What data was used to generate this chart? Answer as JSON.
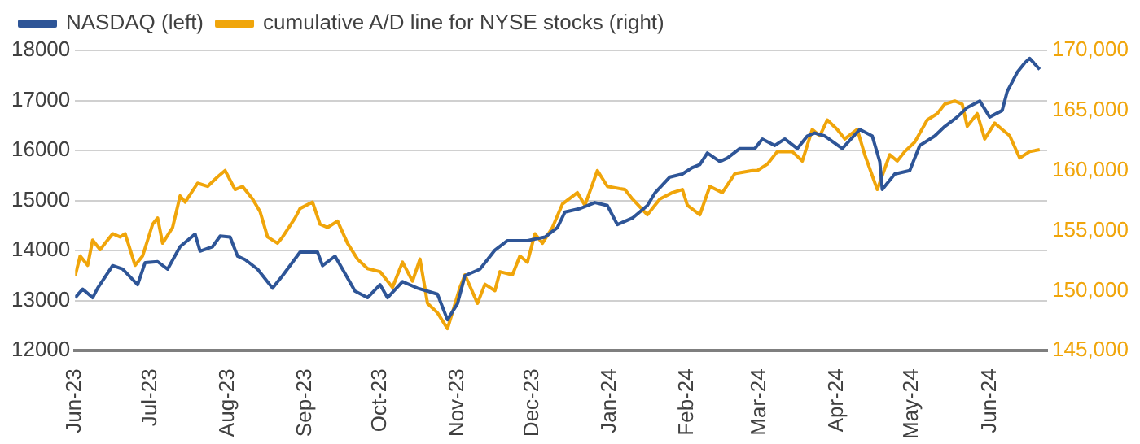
{
  "chart_data": {
    "type": "line",
    "xlim": [
      "2023-06-01",
      "2024-06-24"
    ],
    "xticks": [
      {
        "value": "2023-06-01",
        "label": "Jun-23"
      },
      {
        "value": "2023-07-01",
        "label": "Jul-23"
      },
      {
        "value": "2023-08-01",
        "label": "Aug-23"
      },
      {
        "value": "2023-09-01",
        "label": "Sep-23"
      },
      {
        "value": "2023-10-01",
        "label": "Oct-23"
      },
      {
        "value": "2023-11-01",
        "label": "Nov-23"
      },
      {
        "value": "2023-12-01",
        "label": "Dec-23"
      },
      {
        "value": "2024-01-01",
        "label": "Jan-24"
      },
      {
        "value": "2024-02-01",
        "label": "Feb-24"
      },
      {
        "value": "2024-03-01",
        "label": "Mar-24"
      },
      {
        "value": "2024-04-01",
        "label": "Apr-24"
      },
      {
        "value": "2024-05-01",
        "label": "May-24"
      },
      {
        "value": "2024-06-01",
        "label": "Jun-24"
      }
    ],
    "ylim": [
      12000,
      18000
    ],
    "yticks": [
      12000,
      13000,
      14000,
      15000,
      16000,
      17000,
      18000
    ],
    "y2lim": [
      145000,
      170000
    ],
    "y2ticks": [
      {
        "value": 145000,
        "label": "145,000"
      },
      {
        "value": 150000,
        "label": "150,000"
      },
      {
        "value": 155000,
        "label": "155,000"
      },
      {
        "value": 160000,
        "label": "160,000"
      },
      {
        "value": 165000,
        "label": "165,000"
      },
      {
        "value": 170000,
        "label": "170,000"
      }
    ],
    "grid": "y",
    "legend": "top left",
    "series": [
      {
        "name": "NASDAQ (left)",
        "color": "#2e5597",
        "axis": "y",
        "x": [
          "2023-06-01",
          "2023-06-04",
          "2023-06-08",
          "2023-06-10",
          "2023-06-16",
          "2023-06-20",
          "2023-06-26",
          "2023-06-29",
          "2023-07-04",
          "2023-07-08",
          "2023-07-13",
          "2023-07-19",
          "2023-07-21",
          "2023-07-26",
          "2023-07-29",
          "2023-08-02",
          "2023-08-05",
          "2023-08-08",
          "2023-08-13",
          "2023-08-19",
          "2023-08-23",
          "2023-08-30",
          "2023-09-06",
          "2023-09-08",
          "2023-09-13",
          "2023-09-16",
          "2023-09-21",
          "2023-09-26",
          "2023-10-01",
          "2023-10-04",
          "2023-10-10",
          "2023-10-16",
          "2023-10-24",
          "2023-10-28",
          "2023-11-01",
          "2023-11-04",
          "2023-11-10",
          "2023-11-16",
          "2023-11-21",
          "2023-11-29",
          "2023-12-06",
          "2023-12-11",
          "2023-12-14",
          "2023-12-20",
          "2023-12-26",
          "2023-12-31",
          "2024-01-04",
          "2024-01-10",
          "2024-01-16",
          "2024-01-19",
          "2024-01-25",
          "2024-01-30",
          "2024-02-03",
          "2024-02-06",
          "2024-02-09",
          "2024-02-14",
          "2024-02-17",
          "2024-02-22",
          "2024-02-28",
          "2024-03-02",
          "2024-03-07",
          "2024-03-11",
          "2024-03-16",
          "2024-03-20",
          "2024-03-23",
          "2024-03-27",
          "2024-04-03",
          "2024-04-10",
          "2024-04-15",
          "2024-04-18",
          "2024-04-19",
          "2024-04-24",
          "2024-04-30",
          "2024-05-04",
          "2024-05-10",
          "2024-05-14",
          "2024-05-19",
          "2024-05-23",
          "2024-05-28",
          "2024-06-01",
          "2024-06-06",
          "2024-06-08",
          "2024-06-12",
          "2024-06-15",
          "2024-06-17",
          "2024-06-21"
        ],
        "values": [
          13060,
          13230,
          13060,
          13250,
          13700,
          13630,
          13320,
          13760,
          13780,
          13630,
          14080,
          14330,
          13990,
          14080,
          14290,
          14270,
          13890,
          13820,
          13630,
          13250,
          13500,
          13970,
          13970,
          13700,
          13890,
          13630,
          13190,
          13060,
          13320,
          13060,
          13380,
          13250,
          13130,
          12620,
          12940,
          13500,
          13630,
          14010,
          14200,
          14200,
          14270,
          14460,
          14770,
          14840,
          14960,
          14900,
          14520,
          14650,
          14900,
          15150,
          15470,
          15530,
          15660,
          15720,
          15950,
          15780,
          15850,
          16040,
          16040,
          16230,
          16100,
          16230,
          16040,
          16290,
          16350,
          16290,
          16040,
          16420,
          16290,
          15780,
          15220,
          15530,
          15600,
          16100,
          16290,
          16480,
          16670,
          16860,
          16990,
          16670,
          16800,
          17180,
          17560,
          17750,
          17840,
          17620
        ]
      },
      {
        "name": "cumulative A/D line for NYSE stocks (right)",
        "color": "#f0a50a",
        "axis": "y2",
        "x": [
          "2023-06-01",
          "2023-06-03",
          "2023-06-06",
          "2023-06-08",
          "2023-06-11",
          "2023-06-13",
          "2023-06-16",
          "2023-06-19",
          "2023-06-21",
          "2023-06-25",
          "2023-06-28",
          "2023-07-02",
          "2023-07-04",
          "2023-07-06",
          "2023-07-10",
          "2023-07-13",
          "2023-07-15",
          "2023-07-20",
          "2023-07-24",
          "2023-07-28",
          "2023-07-31",
          "2023-08-04",
          "2023-08-07",
          "2023-08-11",
          "2023-08-14",
          "2023-08-17",
          "2023-08-21",
          "2023-08-23",
          "2023-08-28",
          "2023-08-30",
          "2023-09-04",
          "2023-09-07",
          "2023-09-10",
          "2023-09-14",
          "2023-09-18",
          "2023-09-22",
          "2023-09-26",
          "2023-10-01",
          "2023-10-06",
          "2023-10-10",
          "2023-10-14",
          "2023-10-17",
          "2023-10-20",
          "2023-10-24",
          "2023-10-28",
          "2023-11-02",
          "2023-11-04",
          "2023-11-09",
          "2023-11-12",
          "2023-11-16",
          "2023-11-18",
          "2023-11-23",
          "2023-11-26",
          "2023-11-29",
          "2023-12-02",
          "2023-12-05",
          "2023-12-09",
          "2023-12-13",
          "2023-12-19",
          "2023-12-22",
          "2023-12-27",
          "2023-12-31",
          "2024-01-07",
          "2024-01-10",
          "2024-01-16",
          "2024-01-21",
          "2024-01-26",
          "2024-01-30",
          "2024-02-01",
          "2024-02-06",
          "2024-02-10",
          "2024-02-15",
          "2024-02-20",
          "2024-02-27",
          "2024-02-29",
          "2024-03-04",
          "2024-03-08",
          "2024-03-14",
          "2024-03-18",
          "2024-03-22",
          "2024-03-25",
          "2024-03-28",
          "2024-04-01",
          "2024-04-04",
          "2024-04-09",
          "2024-04-12",
          "2024-04-17",
          "2024-04-22",
          "2024-04-25",
          "2024-04-28",
          "2024-05-02",
          "2024-05-07",
          "2024-05-11",
          "2024-05-14",
          "2024-05-18",
          "2024-05-21",
          "2024-05-23",
          "2024-05-27",
          "2024-05-30",
          "2024-06-03",
          "2024-06-06",
          "2024-06-09",
          "2024-06-13",
          "2024-06-17",
          "2024-06-21"
        ],
        "values": [
          151210,
          152890,
          152110,
          154210,
          153420,
          153950,
          154740,
          154470,
          154740,
          152110,
          152890,
          155530,
          156050,
          153950,
          155260,
          157890,
          157370,
          158950,
          158680,
          159470,
          160000,
          158420,
          158680,
          157630,
          156580,
          154470,
          153950,
          154470,
          156050,
          156840,
          157370,
          155530,
          155260,
          155790,
          153950,
          152630,
          151840,
          151580,
          150260,
          152370,
          150790,
          152630,
          148950,
          148160,
          146840,
          150260,
          151320,
          148950,
          150530,
          150000,
          151580,
          151320,
          152890,
          152370,
          154740,
          153950,
          155260,
          157210,
          158160,
          157110,
          160000,
          158680,
          158420,
          157630,
          156320,
          157630,
          158160,
          158420,
          157110,
          156320,
          158680,
          158160,
          159740,
          160000,
          160000,
          160530,
          161580,
          161580,
          160790,
          163420,
          162890,
          164210,
          163420,
          162630,
          163420,
          161320,
          158420,
          161320,
          160790,
          161580,
          162370,
          164210,
          164740,
          165530,
          165790,
          165530,
          163680,
          164740,
          162630,
          163950,
          163420,
          162890,
          161050,
          161580,
          161740
        ]
      }
    ]
  }
}
